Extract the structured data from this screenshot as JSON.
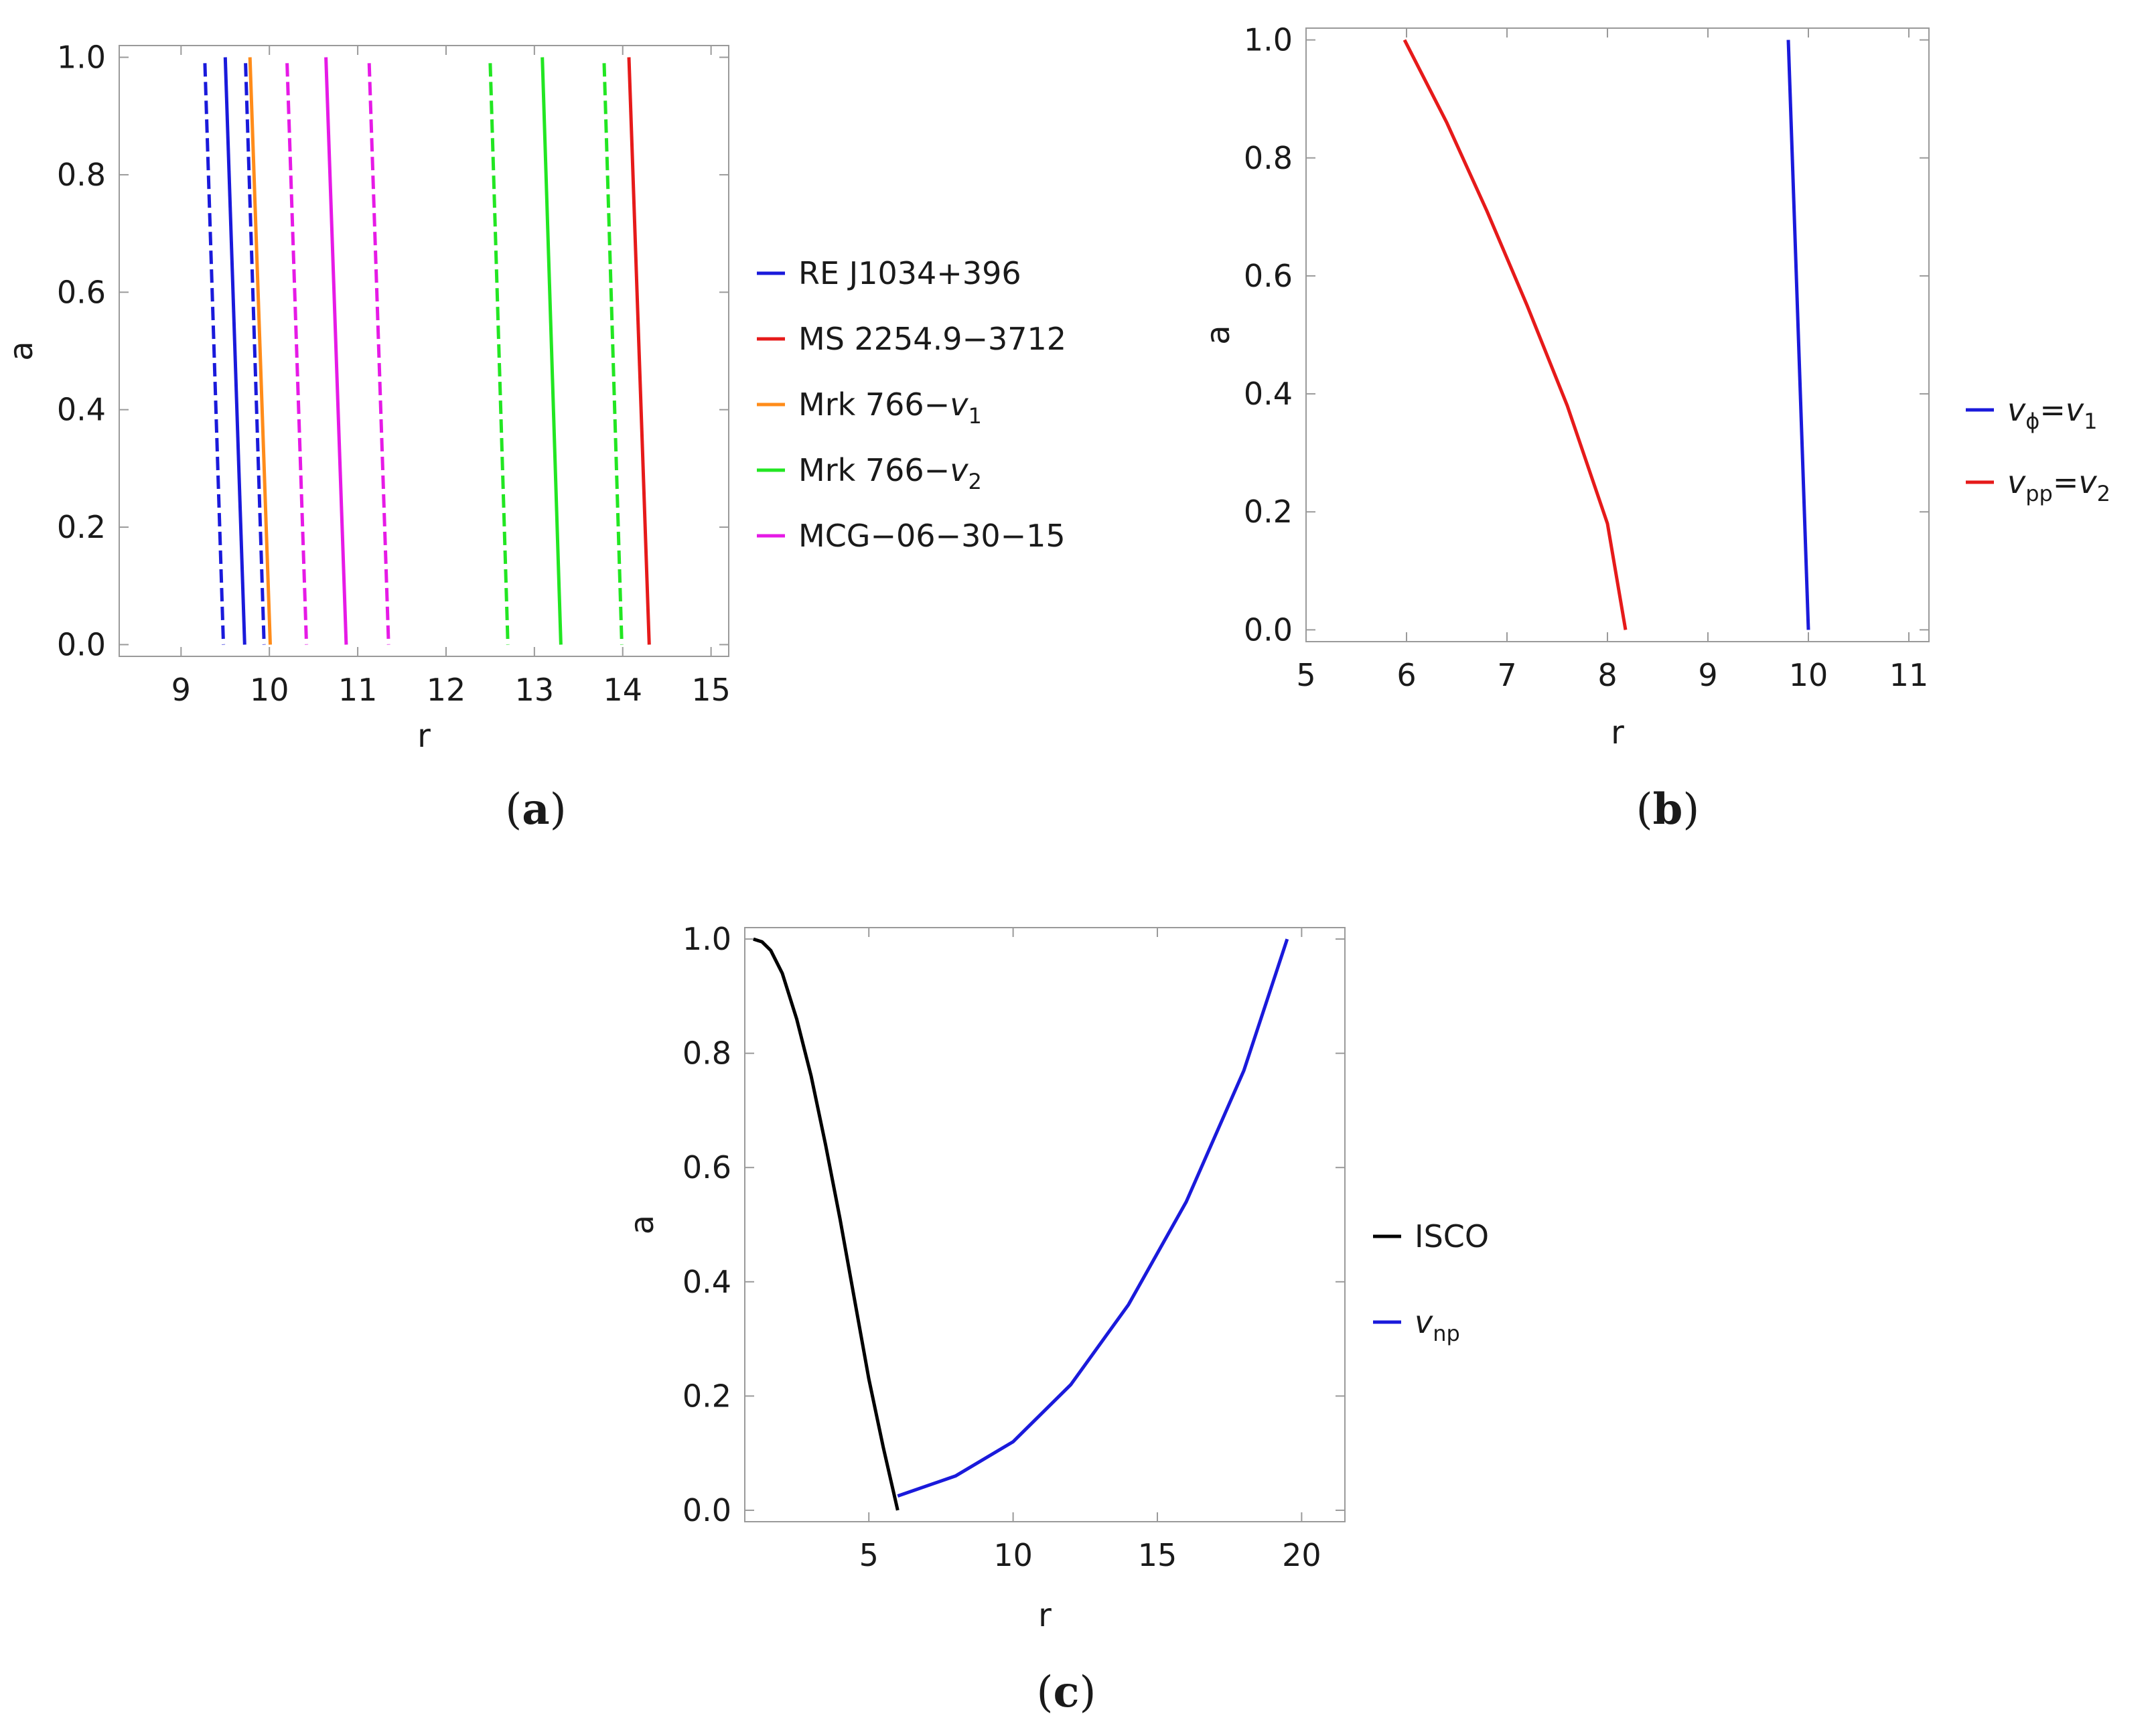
{
  "chart_data": [
    {
      "id": "a",
      "type": "line",
      "panel_label": "a",
      "xlabel": "r",
      "ylabel": "a",
      "xlim": [
        8.3,
        15.2
      ],
      "ylim": [
        -0.02,
        1.02
      ],
      "xticks": [
        9,
        10,
        11,
        12,
        13,
        14,
        15
      ],
      "yticks": [
        "0.0",
        "0.2",
        "0.4",
        "0.6",
        "0.8",
        "1.0"
      ],
      "legend_position": "right",
      "legend": [
        {
          "label": "RE J1034+396",
          "color": "#1a1adb"
        },
        {
          "label": "MS 2254.9−3712",
          "color": "#e61a1a"
        },
        {
          "label": "Mrk 766−",
          "sym": "v",
          "sub": "1",
          "color": "#ff8c1a"
        },
        {
          "label": "Mrk 766−",
          "sym": "v",
          "sub": "2",
          "color": "#22e622"
        },
        {
          "label": "MCG−06−30−15",
          "color": "#e61ae6"
        }
      ],
      "series": [
        {
          "name": "RE J1034+396 lower",
          "color": "#1a1adb",
          "dashed": true,
          "x": [
            9.27,
            9.48
          ],
          "y": [
            0.99,
            0.0
          ]
        },
        {
          "name": "RE J1034+396",
          "color": "#1a1adb",
          "dashed": false,
          "x": [
            9.5,
            9.72
          ],
          "y": [
            1.0,
            0.0
          ]
        },
        {
          "name": "RE J1034+396 upper",
          "color": "#1a1adb",
          "dashed": true,
          "x": [
            9.73,
            9.94
          ],
          "y": [
            0.99,
            0.0
          ]
        },
        {
          "name": "Mrk 766-v1",
          "color": "#ff8c1a",
          "dashed": false,
          "x": [
            9.78,
            10.01
          ],
          "y": [
            1.0,
            0.0
          ]
        },
        {
          "name": "MCG-06-30-15 lower",
          "color": "#e61ae6",
          "dashed": true,
          "x": [
            10.2,
            10.42
          ],
          "y": [
            0.99,
            0.0
          ]
        },
        {
          "name": "MCG-06-30-15",
          "color": "#e61ae6",
          "dashed": false,
          "x": [
            10.64,
            10.87
          ],
          "y": [
            1.0,
            0.0
          ]
        },
        {
          "name": "MCG-06-30-15 upper",
          "color": "#e61ae6",
          "dashed": true,
          "x": [
            11.13,
            11.35
          ],
          "y": [
            0.99,
            0.0
          ]
        },
        {
          "name": "Mrk 766-v2 lower",
          "color": "#22e622",
          "dashed": true,
          "x": [
            12.5,
            12.7
          ],
          "y": [
            0.99,
            0.0
          ]
        },
        {
          "name": "Mrk 766-v2",
          "color": "#22e622",
          "dashed": false,
          "x": [
            13.09,
            13.3
          ],
          "y": [
            1.0,
            0.0
          ]
        },
        {
          "name": "Mrk 766-v2 upper",
          "color": "#22e622",
          "dashed": true,
          "x": [
            13.79,
            13.99
          ],
          "y": [
            0.99,
            0.0
          ]
        },
        {
          "name": "MS 2254.9-3712",
          "color": "#e61a1a",
          "dashed": false,
          "x": [
            14.07,
            14.3
          ],
          "y": [
            1.0,
            0.0
          ]
        }
      ]
    },
    {
      "id": "b",
      "type": "line",
      "panel_label": "b",
      "xlabel": "r",
      "ylabel": "a",
      "xlim": [
        5.0,
        11.2
      ],
      "ylim": [
        -0.02,
        1.02
      ],
      "xticks": [
        5,
        6,
        7,
        8,
        9,
        10,
        11
      ],
      "yticks": [
        "0.0",
        "0.2",
        "0.4",
        "0.6",
        "0.8",
        "1.0"
      ],
      "legend_position": "right",
      "legend": [
        {
          "sym": "v",
          "sub": "ϕ",
          "rest": "=",
          "sym2": "v",
          "sub2": "1",
          "color": "#1a1adb"
        },
        {
          "sym": "v",
          "sub": "pp",
          "rest": "=",
          "sym2": "v",
          "sub2": "2",
          "color": "#e61a1a"
        }
      ],
      "series": [
        {
          "name": "v_phi = v_1",
          "color": "#1a1adb",
          "dashed": false,
          "x": [
            9.8,
            10.0
          ],
          "y": [
            1.0,
            0.0
          ]
        },
        {
          "name": "v_pp = v_2",
          "color": "#e61a1a",
          "dashed": false,
          "x": [
            5.98,
            6.4,
            6.8,
            7.2,
            7.6,
            8.0,
            8.18
          ],
          "y": [
            1.0,
            0.86,
            0.71,
            0.55,
            0.38,
            0.18,
            0.0
          ]
        }
      ]
    },
    {
      "id": "c",
      "type": "line",
      "panel_label": "c",
      "xlabel": "r",
      "ylabel": "a",
      "xlim": [
        0.7,
        21.5
      ],
      "ylim": [
        -0.02,
        1.02
      ],
      "xticks": [
        5,
        10,
        15,
        20
      ],
      "yticks": [
        "0.0",
        "0.2",
        "0.4",
        "0.6",
        "0.8",
        "1.0"
      ],
      "legend_position": "right",
      "legend": [
        {
          "label": "ISCO",
          "color": "#000000"
        },
        {
          "sym": "v",
          "sub": "np",
          "color": "#1a1adb"
        }
      ],
      "series": [
        {
          "name": "ISCO",
          "color": "#000000",
          "dashed": false,
          "x": [
            1.0,
            1.3,
            1.6,
            2.0,
            2.5,
            3.0,
            3.5,
            4.0,
            4.5,
            5.0,
            5.5,
            6.0
          ],
          "y": [
            1.0,
            0.995,
            0.98,
            0.94,
            0.86,
            0.76,
            0.64,
            0.51,
            0.37,
            0.23,
            0.11,
            0.0
          ]
        },
        {
          "name": "v_np",
          "color": "#1a1adb",
          "dashed": false,
          "x": [
            6.0,
            8.0,
            10.0,
            12.0,
            14.0,
            16.0,
            18.0,
            19.5
          ],
          "y": [
            0.025,
            0.06,
            0.12,
            0.22,
            0.36,
            0.54,
            0.77,
            1.0
          ]
        }
      ]
    }
  ]
}
